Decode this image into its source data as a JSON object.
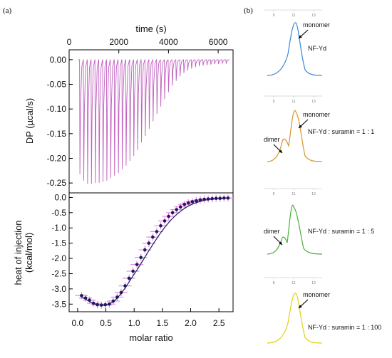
{
  "panel_labels": {
    "a": "(a)",
    "b": "(b)"
  },
  "chart_data": [
    {
      "type": "line",
      "panel": "a-top",
      "xlabel": "time (s)",
      "ylabel": "DP (µcal/s)",
      "xlim": [
        0,
        6600
      ],
      "ylim": [
        -0.27,
        0.02
      ],
      "x_ticks": [
        0,
        2000,
        4000,
        6000
      ],
      "x_tick_labels": [
        "0",
        "2000",
        "4000",
        "6000"
      ],
      "y_ticks": [
        0.0,
        -0.05,
        -0.1,
        -0.15,
        -0.2,
        -0.25
      ],
      "y_tick_labels": [
        "0.00",
        "-0.05",
        "-0.10",
        "-0.15",
        "-0.20",
        "-0.25"
      ],
      "series": [
        {
          "color": "#c060c0",
          "injection_times": [
            420,
            575,
            730,
            885,
            1040,
            1195,
            1350,
            1505,
            1660,
            1815,
            1970,
            2125,
            2280,
            2435,
            2590,
            2745,
            2900,
            3055,
            3210,
            3365,
            3520,
            3675,
            3830,
            3985,
            4140,
            4295,
            4450,
            4605,
            4760,
            4915,
            5070,
            5225,
            5380,
            5535,
            5690,
            5845,
            6000,
            6155,
            6310
          ],
          "peak_values": [
            -0.232,
            -0.245,
            -0.252,
            -0.252,
            -0.25,
            -0.25,
            -0.248,
            -0.245,
            -0.24,
            -0.235,
            -0.23,
            -0.222,
            -0.215,
            -0.205,
            -0.195,
            -0.183,
            -0.168,
            -0.155,
            -0.14,
            -0.125,
            -0.11,
            -0.095,
            -0.08,
            -0.066,
            -0.053,
            -0.043,
            -0.034,
            -0.027,
            -0.022,
            -0.018,
            -0.015,
            -0.013,
            -0.012,
            -0.011,
            -0.01,
            -0.009,
            -0.009,
            -0.008,
            -0.008
          ],
          "baseline": 0.0
        }
      ],
      "grid": false
    },
    {
      "type": "scatter",
      "panel": "a-bottom",
      "xlabel": "molar ratio",
      "ylabel": "heat of injection (kcal/mol)",
      "ylabel_lines": [
        "heat of injection",
        "(kcal/mol)"
      ],
      "xlim": [
        -0.15,
        2.75
      ],
      "ylim": [
        -3.75,
        0.15
      ],
      "x_ticks": [
        0.0,
        0.5,
        1.0,
        1.5,
        2.0,
        2.5
      ],
      "x_tick_labels": [
        "0.0",
        "0.5",
        "1.0",
        "1.5",
        "2.0",
        "2.5"
      ],
      "y_ticks": [
        0.0,
        -0.5,
        -1.0,
        -1.5,
        -2.0,
        -2.5,
        -3.0,
        -3.5
      ],
      "y_tick_labels": [
        "0.0",
        "-0.5",
        "-1.0",
        "-1.5",
        "-2.0",
        "-2.5",
        "-3.0",
        "-3.5"
      ],
      "points_x": [
        0.07,
        0.14,
        0.21,
        0.28,
        0.35,
        0.42,
        0.49,
        0.56,
        0.63,
        0.7,
        0.77,
        0.84,
        0.91,
        0.98,
        1.05,
        1.12,
        1.19,
        1.26,
        1.33,
        1.4,
        1.47,
        1.54,
        1.61,
        1.68,
        1.75,
        1.82,
        1.89,
        1.96,
        2.03,
        2.1,
        2.17,
        2.24,
        2.31,
        2.38,
        2.45,
        2.52,
        2.59,
        2.66
      ],
      "points_y": [
        -3.22,
        -3.3,
        -3.37,
        -3.47,
        -3.52,
        -3.53,
        -3.52,
        -3.5,
        -3.4,
        -3.27,
        -3.12,
        -2.9,
        -2.65,
        -2.42,
        -2.2,
        -1.97,
        -1.72,
        -1.5,
        -1.3,
        -1.12,
        -0.93,
        -0.77,
        -0.62,
        -0.5,
        -0.4,
        -0.31,
        -0.23,
        -0.18,
        -0.14,
        -0.11,
        -0.08,
        -0.06,
        -0.05,
        -0.04,
        -0.03,
        -0.03,
        -0.02,
        -0.02
      ],
      "error": 0.05,
      "fit_x": [
        0.05,
        0.15,
        0.25,
        0.35,
        0.45,
        0.55,
        0.65,
        0.75,
        0.85,
        0.95,
        1.05,
        1.15,
        1.25,
        1.35,
        1.45,
        1.55,
        1.65,
        1.75,
        1.85,
        1.95,
        2.05,
        2.15,
        2.25,
        2.35,
        2.45,
        2.55,
        2.65
      ],
      "fit_y": [
        -3.24,
        -3.35,
        -3.45,
        -3.52,
        -3.54,
        -3.51,
        -3.4,
        -3.2,
        -2.95,
        -2.66,
        -2.38,
        -2.08,
        -1.78,
        -1.49,
        -1.21,
        -0.96,
        -0.74,
        -0.56,
        -0.41,
        -0.29,
        -0.2,
        -0.14,
        -0.09,
        -0.06,
        -0.04,
        -0.03,
        -0.02
      ],
      "marker_color": "#1a1a5e",
      "errorbar_color": "#e88ae0",
      "grid": false
    }
  ],
  "sec_panels": [
    {
      "id": "monomer-only",
      "color": "#3b86d6",
      "ticks": [
        "9",
        "11",
        "13"
      ],
      "annotations": [
        "monomer"
      ],
      "condition": "NF-Yd"
    },
    {
      "id": "ratio-1-1",
      "color": "#d4962c",
      "ticks": [
        "9",
        "11",
        "13"
      ],
      "annotations": [
        "dimer",
        "monomer"
      ],
      "condition": "NF-Yd : suramin = 1 : 1"
    },
    {
      "id": "ratio-1-5",
      "color": "#4caf3c",
      "ticks": [
        "9",
        "11",
        "13"
      ],
      "annotations": [
        "dimer"
      ],
      "condition": "NF-Yd : suramin = 1 : 5"
    },
    {
      "id": "ratio-1-100",
      "color": "#e3d00d",
      "ticks": [
        "9",
        "11",
        "13"
      ],
      "annotations": [
        "monomer"
      ],
      "condition": "NF-Yd : suramin = 1 : 100"
    }
  ]
}
